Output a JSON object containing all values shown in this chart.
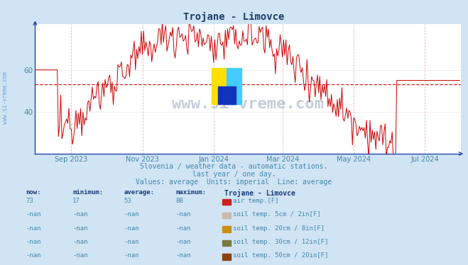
{
  "title": "Trojane - Limovce",
  "bg_color": "#d0e4f4",
  "plot_bg_color": "#ffffff",
  "line_color": "#cc0000",
  "avg_value": 53,
  "y_min": 20,
  "y_max": 82,
  "y_ticks": [
    40,
    60
  ],
  "x_labels": [
    "Sep 2023",
    "Nov 2023",
    "Jan 2024",
    "Mar 2024",
    "May 2024",
    "Jul 2024"
  ],
  "month_positions": [
    31,
    92,
    153,
    212,
    273,
    334
  ],
  "n_points": 365,
  "subtitle1": "Slovenia / weather data - automatic stations.",
  "subtitle2": "last year / one day.",
  "subtitle3": "Values: average  Units: imperial  Line: average",
  "table_headers": [
    "now:",
    "minimum:",
    "average:",
    "maximum:",
    "Trojane - Limovce"
  ],
  "table_rows": [
    [
      "73",
      "17",
      "53",
      "88",
      "#cc2222",
      "air temp.[F]"
    ],
    [
      "-nan",
      "-nan",
      "-nan",
      "-nan",
      "#c8b8b0",
      "soil temp. 5cm / 2in[F]"
    ],
    [
      "-nan",
      "-nan",
      "-nan",
      "-nan",
      "#c89010",
      "soil temp. 20cm / 8in[F]"
    ],
    [
      "-nan",
      "-nan",
      "-nan",
      "-nan",
      "#787840",
      "soil temp. 30cm / 12in[F]"
    ],
    [
      "-nan",
      "-nan",
      "-nan",
      "-nan",
      "#884010",
      "soil temp. 50cm / 20in[F]"
    ]
  ],
  "watermark": "www.si-vreme.com",
  "watermark_color": "#1a3a7a",
  "watermark_alpha": 0.25,
  "side_watermark_color": "#4488cc",
  "grid_color": "#e8b8b8",
  "grid_color_h": "#e8c8c8",
  "axis_color": "#2244aa",
  "tick_label_color": "#4488aa",
  "title_color": "#1a3a6a",
  "header_color": "#1a3a7a"
}
